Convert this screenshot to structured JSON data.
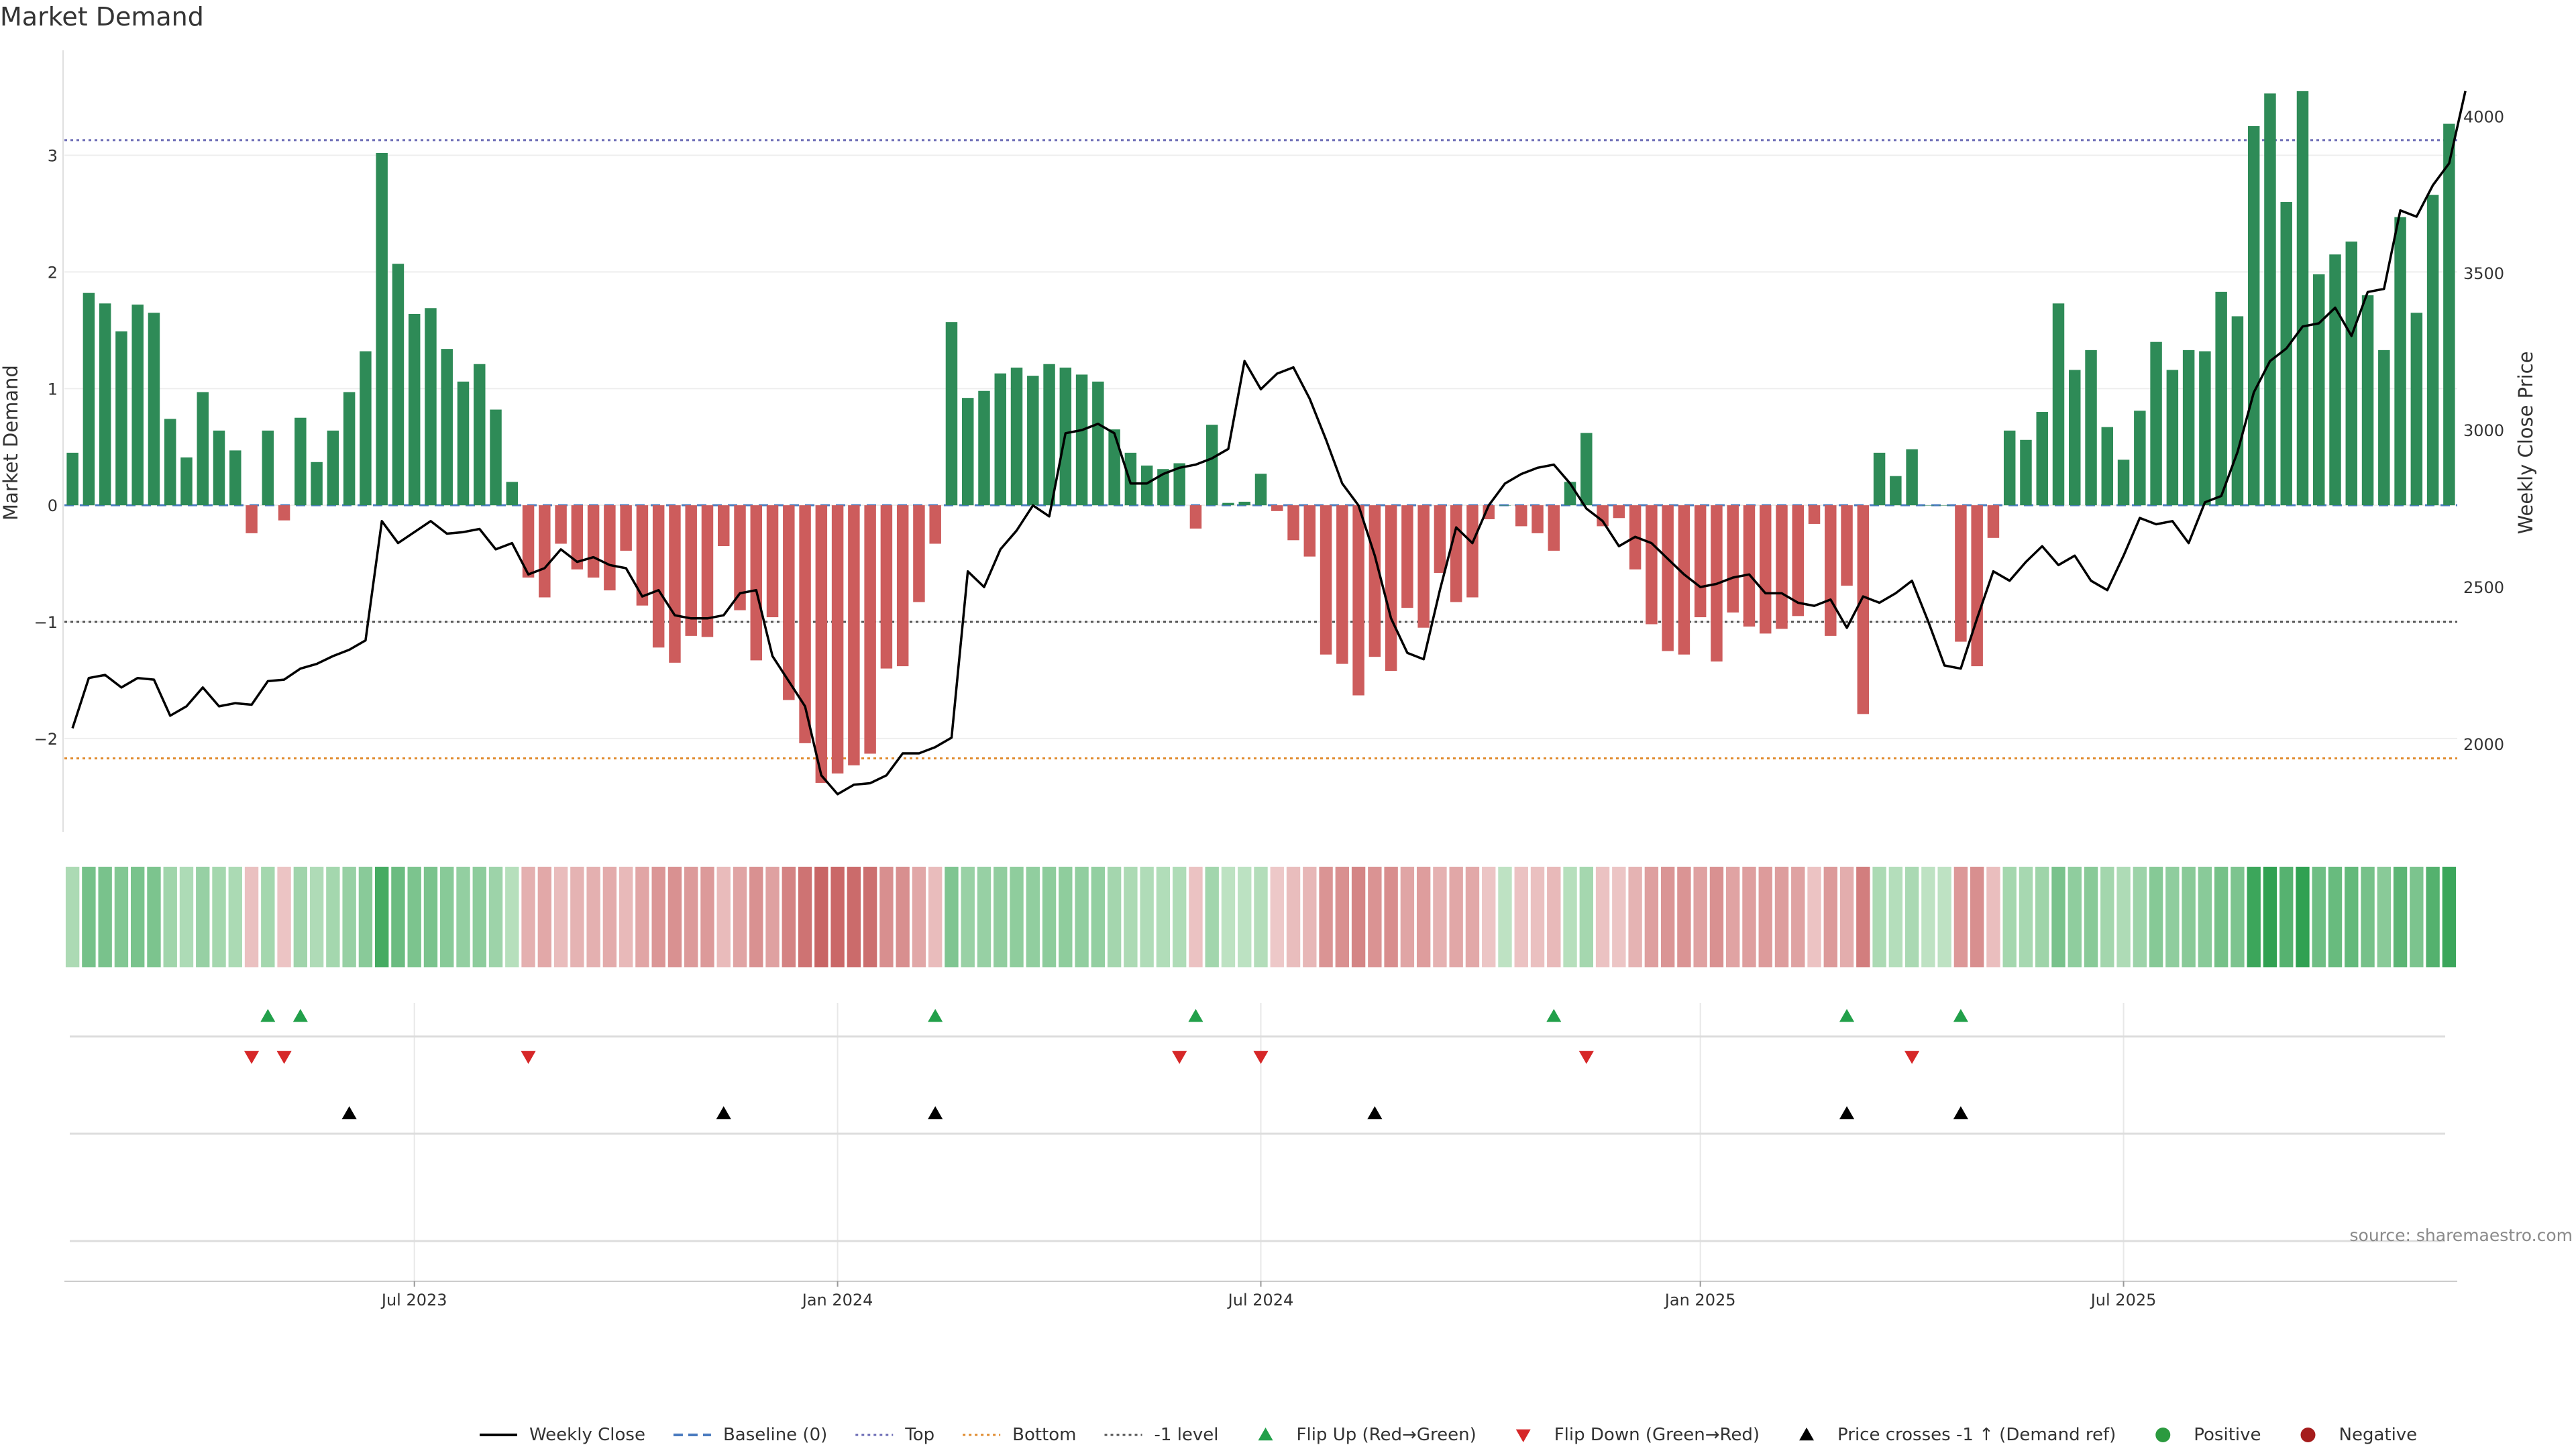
{
  "chart_data": {
    "type": "bar",
    "title": "Market Demand",
    "ylabel_left": "Market Demand",
    "ylabel_right": "Weekly Close Price",
    "source": "source: sharemaestro.com",
    "x_ticks": [
      "Jul 2023",
      "Jan 2024",
      "Jul 2024",
      "Jan 2025",
      "Jul 2025"
    ],
    "left_axis": {
      "ylim": [
        -2.8,
        3.9
      ],
      "ticks": [
        3,
        2,
        1,
        0,
        -1,
        -2
      ],
      "tick_labels": [
        "3",
        "2",
        "1",
        "0",
        "−1",
        "−2"
      ]
    },
    "right_axis": {
      "ylim": [
        1720,
        4210
      ],
      "ticks": [
        4000,
        3500,
        3000,
        2500,
        2000
      ],
      "tick_labels": [
        "4000",
        "3500",
        "3000",
        "2500",
        "2000"
      ]
    },
    "grid": true,
    "reference_lines": {
      "baseline": 0,
      "top": 3.13,
      "bottom": -2.17,
      "minus_one": -1
    },
    "series": [
      {
        "name": "Market Demand",
        "values": [
          0.45,
          1.82,
          1.73,
          1.49,
          1.72,
          1.65,
          0.74,
          0.41,
          0.97,
          0.64,
          0.47,
          -0.24,
          0.64,
          -0.13,
          0.75,
          0.37,
          0.64,
          0.97,
          1.32,
          3.02,
          2.07,
          1.64,
          1.69,
          1.34,
          1.06,
          1.21,
          0.82,
          0.2,
          -0.62,
          -0.79,
          -0.33,
          -0.55,
          -0.62,
          -0.73,
          -0.39,
          -0.86,
          -1.22,
          -1.35,
          -1.12,
          -1.13,
          -0.35,
          -0.9,
          -1.33,
          -0.96,
          -1.67,
          -2.04,
          -2.38,
          -2.3,
          -2.23,
          -2.13,
          -1.4,
          -1.38,
          -0.83,
          -0.33,
          1.57,
          0.92,
          0.98,
          1.13,
          1.18,
          1.11,
          1.21,
          1.18,
          1.12,
          1.06,
          0.65,
          0.45,
          0.34,
          0.31,
          0.36,
          -0.2,
          0.69,
          0.02,
          0.03,
          0.27,
          -0.05,
          -0.3,
          -0.44,
          -1.28,
          -1.36,
          -1.63,
          -1.3,
          -1.42,
          -0.88,
          -1.05,
          -0.58,
          -0.83,
          -0.79,
          -0.12,
          0.0,
          -0.18,
          -0.24,
          -0.39,
          0.2,
          0.62,
          -0.18,
          -0.11,
          -0.55,
          -1.02,
          -1.25,
          -1.28,
          -0.96,
          -1.34,
          -0.92,
          -1.04,
          -1.1,
          -1.06,
          -0.95,
          -0.16,
          -1.12,
          -0.69,
          -1.79,
          0.45,
          0.25,
          0.48,
          0.0,
          0.0,
          -1.17,
          -1.38,
          -0.28,
          0.64,
          0.56,
          0.8,
          1.73,
          1.16,
          1.33,
          0.67,
          0.39,
          0.81,
          1.4,
          1.16,
          1.33,
          1.32,
          1.83,
          1.62,
          3.25,
          3.53,
          2.6,
          3.55,
          1.98,
          2.15,
          2.26,
          1.8,
          1.33,
          2.47,
          1.65,
          2.66,
          3.27
        ]
      },
      {
        "name": "Weekly Close",
        "values": [
          2050,
          2210,
          2220,
          2180,
          2210,
          2205,
          2090,
          2120,
          2180,
          2120,
          2130,
          2125,
          2200,
          2205,
          2240,
          2255,
          2280,
          2300,
          2330,
          2710,
          2640,
          2675,
          2710,
          2670,
          2675,
          2685,
          2620,
          2640,
          2540,
          2560,
          2620,
          2580,
          2595,
          2570,
          2560,
          2470,
          2490,
          2410,
          2400,
          2400,
          2410,
          2480,
          2490,
          2280,
          2200,
          2120,
          1900,
          1840,
          1870,
          1875,
          1900,
          1970,
          1970,
          1990,
          2020,
          2550,
          2500,
          2620,
          2680,
          2760,
          2725,
          2990,
          3000,
          3020,
          2990,
          2830,
          2830,
          2860,
          2880,
          2890,
          2910,
          2940,
          3220,
          3130,
          3180,
          3200,
          3100,
          2970,
          2830,
          2760,
          2600,
          2400,
          2290,
          2270,
          2490,
          2690,
          2640,
          2760,
          2830,
          2860,
          2880,
          2890,
          2830,
          2750,
          2710,
          2630,
          2660,
          2640,
          2590,
          2540,
          2500,
          2510,
          2530,
          2540,
          2480,
          2480,
          2450,
          2440,
          2460,
          2370,
          2470,
          2450,
          2480,
          2520,
          2390,
          2250,
          2240,
          2400,
          2550,
          2520,
          2580,
          2630,
          2570,
          2600,
          2520,
          2490,
          2600,
          2720,
          2700,
          2710,
          2640,
          2770,
          2790,
          2930,
          3120,
          3220,
          3260,
          3330,
          3340,
          3390,
          3300,
          3440,
          3450,
          3700,
          3680,
          3780,
          3850,
          4080
        ]
      }
    ],
    "flip_up_weeks": [
      12,
      14,
      53,
      69,
      91,
      109,
      116
    ],
    "flip_down_weeks": [
      11,
      13,
      28,
      68,
      73,
      93,
      113
    ],
    "price_cross_weeks": [
      17,
      40,
      53,
      80,
      109,
      116
    ],
    "legend": [
      {
        "label": "Weekly Close",
        "kind": "line",
        "color": "#000000"
      },
      {
        "label": "Baseline (0)",
        "kind": "dash",
        "color": "#4a7bbf"
      },
      {
        "label": "Top",
        "kind": "dot",
        "color": "#6b6bb5"
      },
      {
        "label": "Bottom",
        "kind": "dot",
        "color": "#e08a2c"
      },
      {
        "label": "-1 level",
        "kind": "dot",
        "color": "#555555"
      },
      {
        "label": "Flip Up (Red→Green)",
        "kind": "tri-up",
        "color": "#22a04a"
      },
      {
        "label": "Flip Down (Green→Red)",
        "kind": "tri-down",
        "color": "#d62728"
      },
      {
        "label": "Price crosses -1 ↑ (Demand ref)",
        "kind": "tri-up",
        "color": "#000000"
      },
      {
        "label": "Positive",
        "kind": "circle",
        "color": "#2b9a3f"
      },
      {
        "label": "Negative",
        "kind": "circle",
        "color": "#a51c1c"
      }
    ],
    "colors": {
      "positive_bar": "#2e8b57",
      "negative_bar": "#cd5c5c",
      "price_line": "#000000",
      "grid": "#eeeeee"
    }
  }
}
